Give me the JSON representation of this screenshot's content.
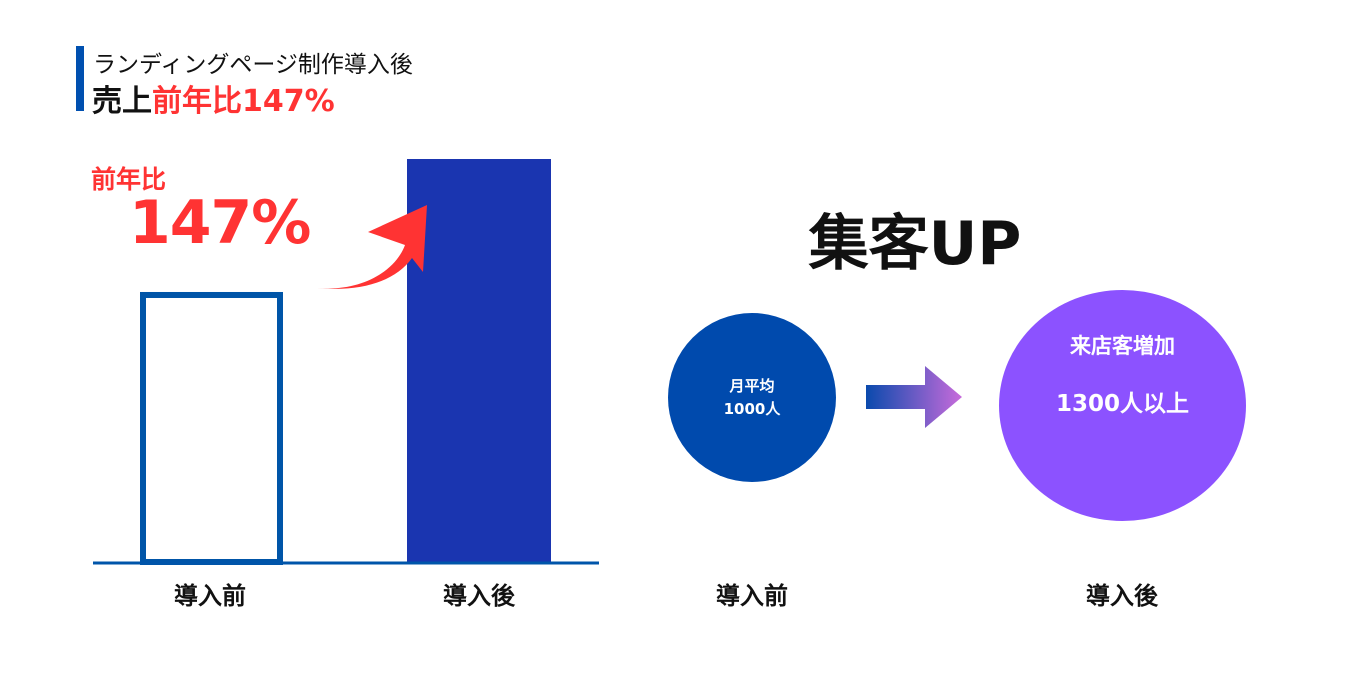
{
  "title": {
    "subtitle": "ランディングページ制作導入後",
    "main_prefix": "売上",
    "main_highlight": "前年比147%"
  },
  "colors": {
    "accent_blue": "#0050b0",
    "bar_after": "#1a35b0",
    "highlight_red": "#ff3333",
    "circle_before": "#004aad",
    "circle_after": "#8c52ff"
  },
  "chart_data": {
    "type": "bar",
    "categories": [
      "導入前",
      "導入後"
    ],
    "values": [
      100,
      147
    ],
    "annotation": {
      "label": "前年比",
      "value": "147%"
    },
    "grid": false
  },
  "visitors": {
    "headline": "集客UP",
    "before": {
      "line1": "月平均",
      "line2": "1000人",
      "label": "導入前"
    },
    "after": {
      "line1": "来店客増加",
      "line2": "1300人以上",
      "label": "導入後"
    },
    "arrow_icon": "right-arrow-icon"
  }
}
